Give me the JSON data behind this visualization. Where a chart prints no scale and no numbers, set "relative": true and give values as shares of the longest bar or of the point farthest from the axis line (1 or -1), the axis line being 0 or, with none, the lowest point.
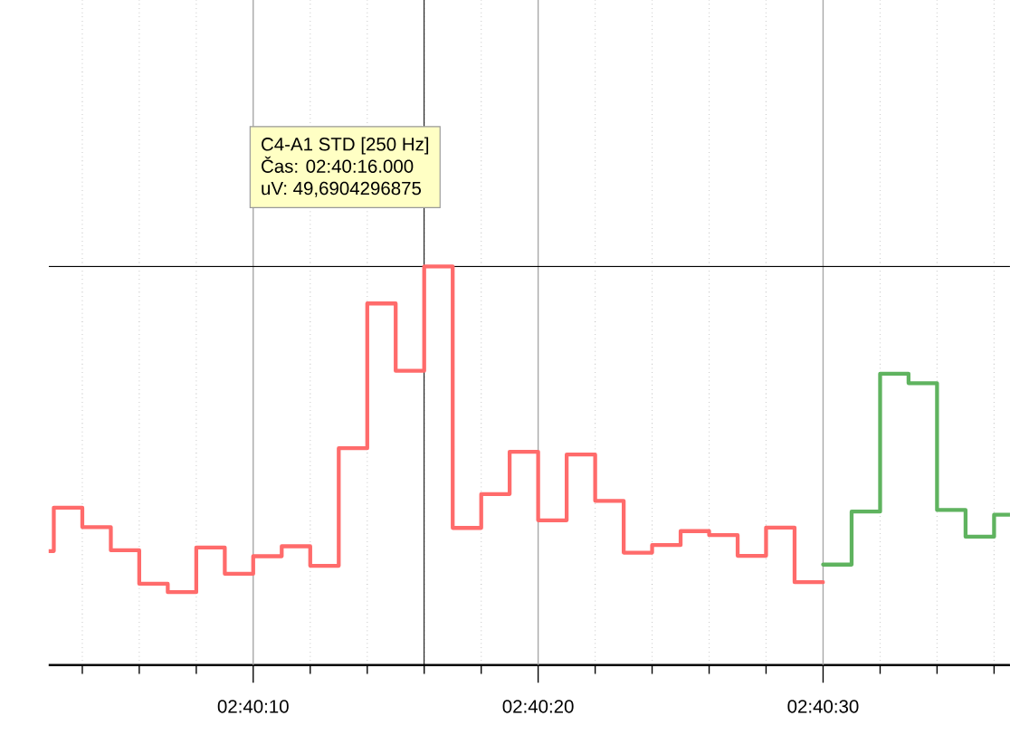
{
  "chart_data": {
    "type": "step",
    "relative": true,
    "marker": "none",
    "line_style": "solid",
    "grid": true,
    "tick_labels": "x",
    "xlim": [
      2.66745,
      2.676822
    ],
    "xticks": [
      {
        "value": 2.667778,
        "label": null
      },
      {
        "value": 2.668333,
        "label": null
      },
      {
        "value": 2.668889,
        "label": null
      },
      {
        "value": 2.669444,
        "label": "02:40:10"
      },
      {
        "value": 2.67,
        "label": null
      },
      {
        "value": 2.670556,
        "label": null
      },
      {
        "value": 2.671111,
        "label": null
      },
      {
        "value": 2.671667,
        "label": null
      },
      {
        "value": 2.672222,
        "label": "02:40:20"
      },
      {
        "value": 2.672778,
        "label": null
      },
      {
        "value": 2.673333,
        "label": null
      },
      {
        "value": 2.673889,
        "label": null
      },
      {
        "value": 2.674444,
        "label": null
      },
      {
        "value": 2.675,
        "label": "02:40:30"
      },
      {
        "value": 2.675556,
        "label": null
      },
      {
        "value": 2.676111,
        "label": null
      },
      {
        "value": 2.676667,
        "label": null
      }
    ],
    "series": [
      {
        "color": "#ff6b6b",
        "x": [
          2.66745,
          2.6675,
          2.667778,
          2.668056,
          2.668333,
          2.668611,
          2.668889,
          2.669167,
          2.669444,
          2.669722,
          2.67,
          2.670278,
          2.670556,
          2.670833,
          2.671111,
          2.671389,
          2.671667,
          2.671944,
          2.672222,
          2.6725,
          2.672778,
          2.673056,
          2.673333,
          2.673611,
          2.673889,
          2.674167,
          2.674444,
          2.674722,
          2.675
        ],
        "values": [
          0.286,
          0.395,
          0.346,
          0.288,
          0.204,
          0.183,
          0.295,
          0.229,
          0.273,
          0.298,
          0.249,
          0.544,
          0.907,
          0.738,
          1,
          0.344,
          0.429,
          0.535,
          0.363,
          0.528,
          0.412,
          0.282,
          0.301,
          0.336,
          0.326,
          0.274,
          0.345,
          0.208,
          0.208
        ]
      },
      {
        "color": "#5fb35f",
        "x": [
          2.675,
          2.675278,
          2.675556,
          2.675833,
          2.676111,
          2.676389,
          2.676667,
          2.676822
        ],
        "values": [
          0.252,
          0.385,
          0.731,
          0.707,
          0.389,
          0.322,
          0.377,
          0.377
        ]
      }
    ],
    "ref_lines": [
      {
        "axis": "x",
        "value": 2.671111,
        "color": "#000000"
      },
      {
        "axis": "y",
        "value": 1,
        "color": "#000000"
      }
    ],
    "annotations": [
      "C4-A1 STD [250 Hz]",
      "Čas: 02:40:16.000",
      "uV: 49,6904296875"
    ]
  }
}
